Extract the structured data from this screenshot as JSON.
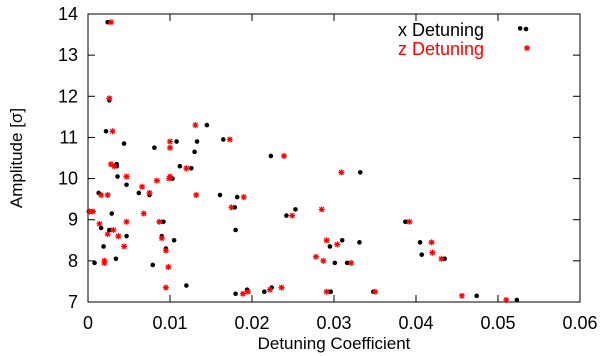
{
  "chart_data": {
    "type": "scatter",
    "title": "",
    "xlabel": "Detuning Coefficient",
    "ylabel": "Amplitude [σ]",
    "xlim": [
      0,
      0.06
    ],
    "ylim": [
      7,
      14
    ],
    "x_ticks": [
      0,
      0.01,
      0.02,
      0.03,
      0.04,
      0.05,
      0.06
    ],
    "x_tick_labels": [
      "0",
      "0.01",
      "0.02",
      "0.03",
      "0.04",
      "0.05",
      "0.06"
    ],
    "y_ticks": [
      7,
      8,
      9,
      10,
      11,
      12,
      13,
      14
    ],
    "y_tick_labels": [
      "7",
      "8",
      "9",
      "10",
      "11",
      "12",
      "13",
      "14"
    ],
    "grid": false,
    "legend_position": "top-right",
    "series": [
      {
        "name": "x Detuning",
        "marker": "dot",
        "color": "#000000",
        "points": [
          [
            0.0024,
            13.8
          ],
          [
            0.0527,
            13.65
          ],
          [
            0.0026,
            11.9
          ],
          [
            0.0145,
            11.3
          ],
          [
            0.0022,
            11.15
          ],
          [
            0.0108,
            10.9
          ],
          [
            0.0133,
            10.9
          ],
          [
            0.0044,
            10.85
          ],
          [
            0.0081,
            10.75
          ],
          [
            0.0165,
            10.95
          ],
          [
            0.0223,
            10.55
          ],
          [
            0.013,
            10.65
          ],
          [
            0.0035,
            10.35
          ],
          [
            0.0035,
            10.3
          ],
          [
            0.0126,
            10.25
          ],
          [
            0.0332,
            10.15
          ],
          [
            0.0036,
            10.05
          ],
          [
            0.0103,
            10.0
          ],
          [
            0.0112,
            10.3
          ],
          [
            0.0013,
            9.65
          ],
          [
            0.0062,
            9.65
          ],
          [
            0.0075,
            9.6
          ],
          [
            0.0161,
            9.6
          ],
          [
            0.0047,
            9.85
          ],
          [
            0.0182,
            9.55
          ],
          [
            0.0179,
            9.3
          ],
          [
            0.0253,
            9.25
          ],
          [
            0.0242,
            9.1
          ],
          [
            0.0387,
            8.95
          ],
          [
            0.0001,
            9.2
          ],
          [
            0.0029,
            9.15
          ],
          [
            0.0092,
            8.95
          ],
          [
            0.0026,
            8.75
          ],
          [
            0.0047,
            8.6
          ],
          [
            0.009,
            8.6
          ],
          [
            0.0016,
            8.8
          ],
          [
            0.0105,
            8.5
          ],
          [
            0.018,
            8.75
          ],
          [
            0.031,
            8.5
          ],
          [
            0.0331,
            8.45
          ],
          [
            0.0405,
            8.45
          ],
          [
            0.0295,
            8.35
          ],
          [
            0.0019,
            8.35
          ],
          [
            0.0095,
            8.3
          ],
          [
            0.0034,
            8.05
          ],
          [
            0.0008,
            7.95
          ],
          [
            0.0079,
            7.9
          ],
          [
            0.0301,
            7.95
          ],
          [
            0.0316,
            7.95
          ],
          [
            0.0407,
            8.15
          ],
          [
            0.0435,
            8.05
          ],
          [
            0.012,
            7.4
          ],
          [
            0.018,
            7.2
          ],
          [
            0.0194,
            7.3
          ],
          [
            0.0224,
            7.35
          ],
          [
            0.0296,
            7.25
          ],
          [
            0.0348,
            7.25
          ],
          [
            0.0474,
            7.15
          ],
          [
            0.0523,
            7.05
          ],
          [
            0.0215,
            7.25
          ]
        ]
      },
      {
        "name": "z Detuning",
        "marker": "star",
        "color": "#ff0000",
        "points": [
          [
            0.0028,
            13.8
          ],
          [
            0.0026,
            11.95
          ],
          [
            0.0131,
            11.3
          ],
          [
            0.003,
            11.15
          ],
          [
            0.0173,
            10.95
          ],
          [
            0.01,
            10.9
          ],
          [
            0.0239,
            10.55
          ],
          [
            0.01,
            10.75
          ],
          [
            0.0028,
            10.35
          ],
          [
            0.0032,
            10.3
          ],
          [
            0.012,
            10.25
          ],
          [
            0.0309,
            10.15
          ],
          [
            0.0047,
            10.05
          ],
          [
            0.0099,
            10.0
          ],
          [
            0.0066,
            9.8
          ],
          [
            0.0075,
            9.65
          ],
          [
            0.01,
            10.05
          ],
          [
            0.0016,
            9.6
          ],
          [
            0.0024,
            9.6
          ],
          [
            0.0084,
            9.95
          ],
          [
            0.0132,
            9.6
          ],
          [
            0.019,
            9.55
          ],
          [
            0.0175,
            9.3
          ],
          [
            0.0285,
            9.25
          ],
          [
            0.0249,
            9.1
          ],
          [
            0.0392,
            8.95
          ],
          [
            0.0002,
            9.2
          ],
          [
            0.0006,
            9.2
          ],
          [
            0.0068,
            9.15
          ],
          [
            0.0087,
            8.95
          ],
          [
            0.0024,
            8.65
          ],
          [
            0.0031,
            8.75
          ],
          [
            0.0047,
            8.95
          ],
          [
            0.0037,
            8.6
          ],
          [
            0.009,
            8.55
          ],
          [
            0.0014,
            8.9
          ],
          [
            0.0291,
            8.5
          ],
          [
            0.0304,
            8.4
          ],
          [
            0.0419,
            8.45
          ],
          [
            0.0095,
            8.25
          ],
          [
            0.002,
            8.0
          ],
          [
            0.0278,
            8.1
          ],
          [
            0.0287,
            8.0
          ],
          [
            0.0098,
            7.85
          ],
          [
            0.042,
            8.2
          ],
          [
            0.0431,
            8.05
          ],
          [
            0.0321,
            7.95
          ],
          [
            0.0044,
            8.35
          ],
          [
            0.0095,
            7.35
          ],
          [
            0.0189,
            7.2
          ],
          [
            0.0195,
            7.25
          ],
          [
            0.0236,
            7.35
          ],
          [
            0.0291,
            7.25
          ],
          [
            0.035,
            7.25
          ],
          [
            0.0456,
            7.15
          ],
          [
            0.051,
            7.05
          ],
          [
            0.0222,
            7.3
          ],
          [
            0.002,
            7.95
          ]
        ]
      }
    ]
  }
}
